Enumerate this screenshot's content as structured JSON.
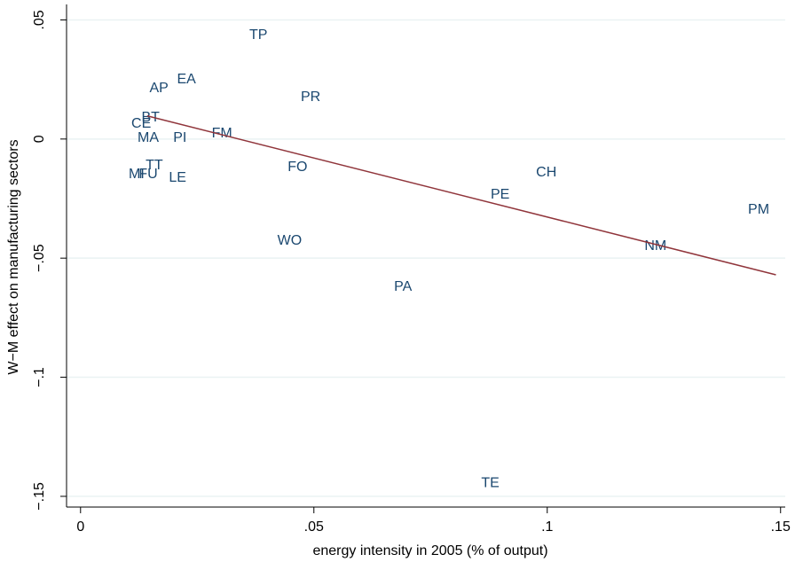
{
  "chart_data": {
    "type": "scatter",
    "x_label": "energy intensity in 2005 (% of output)",
    "y_label": "W−M effect on manufacturing sectors",
    "labels": [
      "TP",
      "EA",
      "AP",
      "PR",
      "BT",
      "CE",
      "MA",
      "PI",
      "FM",
      "FO",
      "CH",
      "MI",
      "FU",
      "TT",
      "LE",
      "PE",
      "PM",
      "WO",
      "NM",
      "PA",
      "TE"
    ],
    "x": [
      0.0381,
      0.0227,
      0.0168,
      0.0493,
      0.015,
      0.013,
      0.0145,
      0.0213,
      0.0303,
      0.0465,
      0.0998,
      0.012,
      0.0145,
      0.0158,
      0.0208,
      0.0899,
      0.1453,
      0.0448,
      0.1232,
      0.0691,
      0.0878
    ],
    "y": [
      0.0436,
      0.025,
      0.0212,
      0.0175,
      0.0089,
      0.0063,
      0.0004,
      0.0004,
      0.0022,
      -0.0119,
      -0.0142,
      -0.0149,
      -0.0149,
      -0.0112,
      -0.0164,
      -0.0235,
      -0.0298,
      -0.0428,
      -0.0451,
      -0.0622,
      -0.1445
    ],
    "color": "#1a476f",
    "fit": {
      "x": [
        0.0143,
        0.149
      ],
      "y": [
        0.0097,
        -0.057
      ],
      "color": "#90353b"
    },
    "xlim": [
      -0.003,
      0.151
    ],
    "ylim": [
      -0.1545,
      0.0565
    ],
    "xticks": [
      0,
      {
        "value": 0.05,
        "label": ".05"
      },
      {
        "value": 0.1,
        "label": ".1"
      },
      {
        "value": 0.15,
        "label": ".15"
      }
    ],
    "yticks": [
      {
        "value": -0.15,
        "label": "−.15"
      },
      {
        "value": -0.1,
        "label": "−.1"
      },
      {
        "value": -0.05,
        "label": "−.05"
      },
      0,
      {
        "value": 0.05,
        "label": ".05"
      }
    ],
    "grid": true
  }
}
